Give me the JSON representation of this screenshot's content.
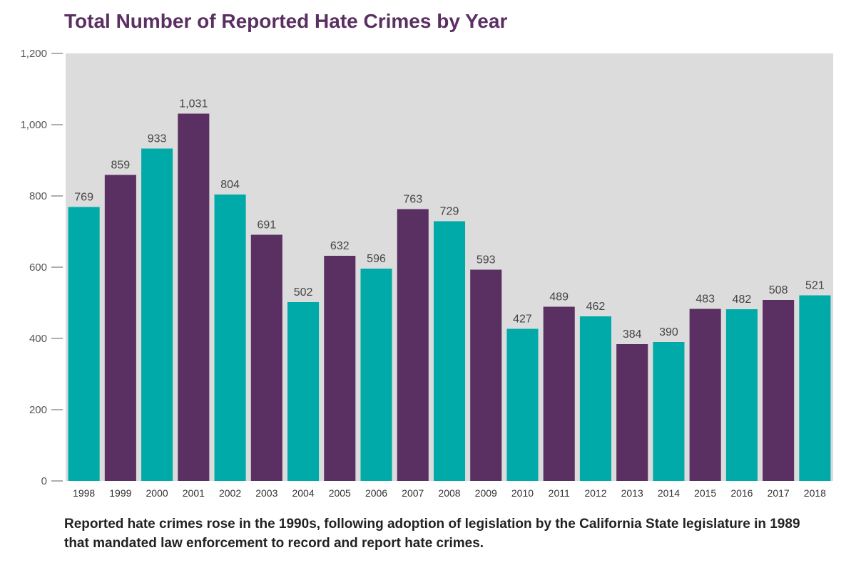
{
  "chart_data": {
    "type": "bar",
    "title": "Total Number of Reported Hate Crimes by Year",
    "categories": [
      "1998",
      "1999",
      "2000",
      "2001",
      "2002",
      "2003",
      "2004",
      "2005",
      "2006",
      "2007",
      "2008",
      "2009",
      "2010",
      "2011",
      "2012",
      "2013",
      "2014",
      "2015",
      "2016",
      "2017",
      "2018"
    ],
    "values": [
      769,
      859,
      933,
      1031,
      804,
      691,
      502,
      632,
      596,
      763,
      729,
      593,
      427,
      489,
      462,
      384,
      390,
      483,
      482,
      508,
      521
    ],
    "data_labels": [
      "769",
      "859",
      "933",
      "1,031",
      "804",
      "691",
      "502",
      "632",
      "596",
      "763",
      "729",
      "593",
      "427",
      "489",
      "462",
      "384",
      "390",
      "483",
      "482",
      "508",
      "521"
    ],
    "bar_colors": [
      "#00aaa8",
      "#5a2f62",
      "#00aaa8",
      "#5a2f62",
      "#00aaa8",
      "#5a2f62",
      "#00aaa8",
      "#5a2f62",
      "#00aaa8",
      "#5a2f62",
      "#00aaa8",
      "#5a2f62",
      "#00aaa8",
      "#5a2f62",
      "#00aaa8",
      "#5a2f62",
      "#00aaa8",
      "#5a2f62",
      "#00aaa8",
      "#5a2f62",
      "#00aaa8"
    ],
    "xlabel": "",
    "ylabel": "",
    "ylim": [
      0,
      1200
    ],
    "yticks": [
      0,
      200,
      400,
      600,
      800,
      1000,
      1200
    ],
    "ytick_labels": [
      "0",
      "200",
      "400",
      "600",
      "800",
      "1,000",
      "1,200"
    ],
    "grid": false,
    "plot_background": "#dcdcdc",
    "legend": "none"
  },
  "caption": "Reported hate crimes rose in the 1990s, following adoption of legislation by the California State legislature in 1989 that mandated law enforcement to record and report hate crimes.",
  "colors": {
    "title": "#5a2f62",
    "teal": "#00aaa8",
    "purple": "#5a2f62"
  }
}
